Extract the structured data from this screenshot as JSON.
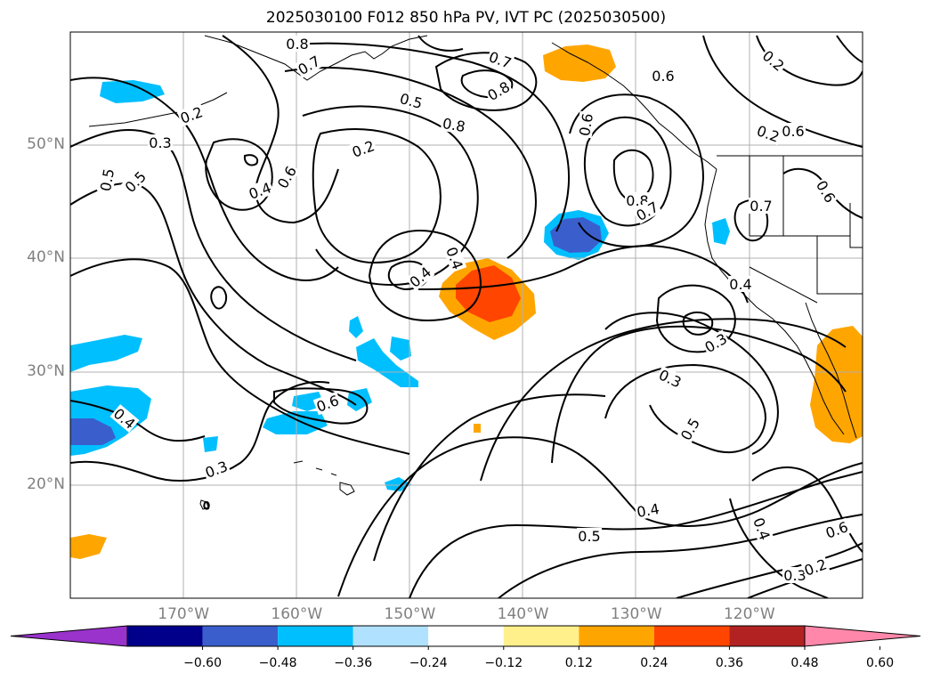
{
  "title": "2025030100 F012 850 hPa PV, IVT PC (2025030500)",
  "map": {
    "lon_range": [
      -180,
      -110
    ],
    "lat_range": [
      10,
      60
    ],
    "lat_ticks": [
      {
        "lat": 50,
        "label": "50°N"
      },
      {
        "lat": 40,
        "label": "40°N"
      },
      {
        "lat": 30,
        "label": "30°N"
      },
      {
        "lat": 20,
        "label": "20°N"
      }
    ],
    "lon_ticks": [
      {
        "lon": -170,
        "label": "170°W"
      },
      {
        "lon": -160,
        "label": "160°W"
      },
      {
        "lon": -150,
        "label": "150°W"
      },
      {
        "lon": -140,
        "label": "140°W"
      },
      {
        "lon": -130,
        "label": "130°W"
      },
      {
        "lon": -120,
        "label": "120°W"
      }
    ],
    "contour_labels": [
      "0.8",
      "0.7",
      "0.5",
      "0.2",
      "0.3",
      "0.5",
      "0.4",
      "0.6",
      "0.5",
      "0.8",
      "0.7",
      "0.8",
      "0.2",
      "0.4",
      "0.6",
      "0.8",
      "0.7",
      "0.6",
      "0.4",
      "0.3",
      "0.4",
      "0.3",
      "0.5",
      "0.6",
      "0.4",
      "0.3",
      "0.2",
      "0.6",
      "0.5",
      "0.3",
      "0.2",
      "0.4",
      "0.2",
      "0.7",
      "0.6",
      "0.4",
      "0.6"
    ]
  },
  "colorbar": {
    "colors": [
      "#9933cc",
      "#00008b",
      "#3a5fcd",
      "#00bfff",
      "#b0e2ff",
      "#ffffff",
      "#fff08c",
      "#ffa500",
      "#ff4500",
      "#b22222",
      "#ff88aa"
    ],
    "labels": [
      "−0.60",
      "−0.48",
      "−0.36",
      "−0.24",
      "−0.12",
      "0.12",
      "0.24",
      "0.36",
      "0.48",
      "0.60"
    ]
  }
}
